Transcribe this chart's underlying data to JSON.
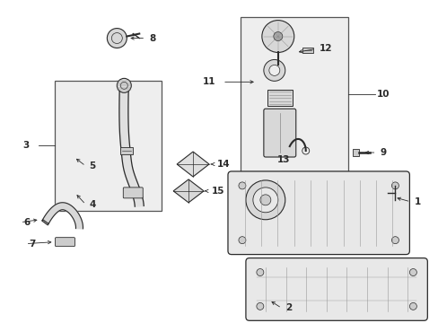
{
  "background_color": "#ffffff",
  "line_color": "#2a2a2a",
  "fill_light": "#f2f2f2",
  "fig_width": 4.89,
  "fig_height": 3.6,
  "dpi": 100
}
